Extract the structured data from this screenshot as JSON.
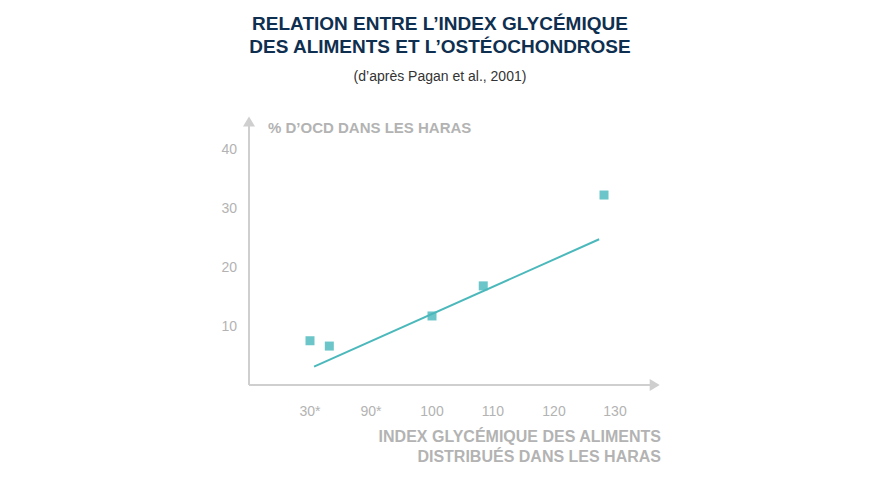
{
  "chart_data": {
    "type": "scatter",
    "title": [
      "RELATION ENTRE L’INDEX GLYCÉMIQUE",
      "DES ALIMENTS ET L’OSTÉOCHONDROSE"
    ],
    "subtitle": "(d’après Pagan et al., 2001)",
    "y_label": "% D’OCD DANS LES HARAS",
    "x_label": [
      "INDEX GLYCÉMIQUE DES ALIMENTS",
      "DISTRIBUÉS DANS LES HARAS"
    ],
    "series": [
      {
        "type": "scatter",
        "marker": "square",
        "color": "#6cc5c8",
        "x": [
          30,
          49,
          100,
          108.4,
          128.2
        ],
        "values": [
          7.5,
          6.6,
          11.7,
          16.8,
          32.2
        ]
      },
      {
        "type": "line",
        "line_style": "solid",
        "color": "#4bb8bb",
        "x": [
          34,
          127.4
        ],
        "values": [
          3.1,
          24.7
        ]
      }
    ],
    "xlim": [
      20,
      137
    ],
    "xticks": [
      {
        "value": 30,
        "label": "30*"
      },
      {
        "value": 90,
        "label": "90*"
      },
      100,
      110,
      120,
      130
    ],
    "ylim": [
      0,
      45
    ],
    "yticks": [
      10,
      20,
      30,
      40
    ],
    "grid": false
  }
}
